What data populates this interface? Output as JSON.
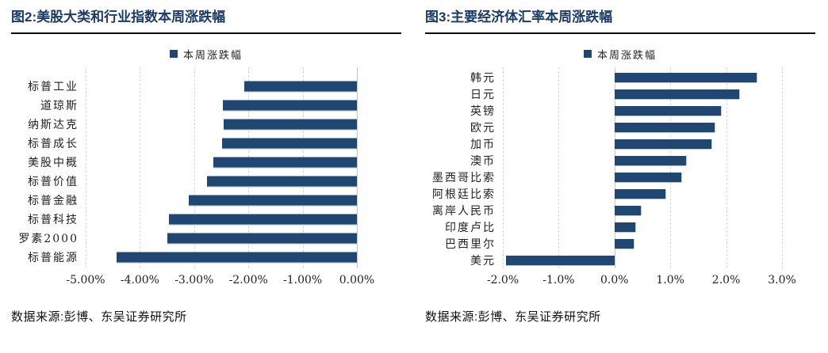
{
  "page": {
    "background": "#ffffff"
  },
  "colors": {
    "bar": "#1f4772",
    "title_text": "#1a3a68",
    "divider": "#0b0b0b",
    "gridline": "#d9d9d9",
    "zero_line": "#c6c6c6",
    "axis_text": "#222222",
    "source_text": "#111111"
  },
  "chart_data": [
    {
      "type": "bar",
      "orientation": "horizontal",
      "title": "图2:美股大类和行业指数本周涨跌幅",
      "legend": [
        "本周涨跌幅"
      ],
      "legend_position": "top-center",
      "categories": [
        "标普工业",
        "道琼斯",
        "纳斯达克",
        "标普成长",
        "美股中概",
        "标普价值",
        "标普金融",
        "标普科技",
        "罗素2000",
        "标普能源"
      ],
      "values": [
        -2.07,
        -2.47,
        -2.46,
        -2.49,
        -2.64,
        -2.76,
        -3.1,
        -3.47,
        -3.49,
        -4.43
      ],
      "unit": "%",
      "xlim": [
        -5,
        0
      ],
      "xtick_labels": [
        "-5.00%",
        "-4.00%",
        "-3.00%",
        "-2.00%",
        "-1.00%",
        "0.00%"
      ],
      "xtick_values": [
        -5,
        -4,
        -3,
        -2,
        -1,
        0
      ],
      "grid": true,
      "bar_color": "#1f4772",
      "source": "数据来源:彭博、东吴证券研究所"
    },
    {
      "type": "bar",
      "orientation": "horizontal",
      "title": "图3:主要经济体汇率本周涨跌幅",
      "legend": [
        "本周涨跌幅"
      ],
      "legend_position": "top-center",
      "categories": [
        "韩元",
        "日元",
        "英镑",
        "欧元",
        "加币",
        "澳币",
        "墨西哥比索",
        "阿根廷比索",
        "离岸人民币",
        "印度卢比",
        "巴西里尔",
        "美元"
      ],
      "values": [
        2.55,
        2.23,
        1.91,
        1.79,
        1.74,
        1.28,
        1.2,
        0.91,
        0.47,
        0.37,
        0.34,
        -1.95
      ],
      "unit": "%",
      "xlim": [
        -2,
        3
      ],
      "xtick_labels": [
        "-2.0%",
        "-1.0%",
        "0.0%",
        "1.0%",
        "2.0%",
        "3.0%"
      ],
      "xtick_values": [
        -2,
        -1,
        0,
        1,
        2,
        3
      ],
      "grid": true,
      "bar_color": "#1f4772",
      "source": "数据来源:彭博、东吴证券研究所"
    }
  ]
}
